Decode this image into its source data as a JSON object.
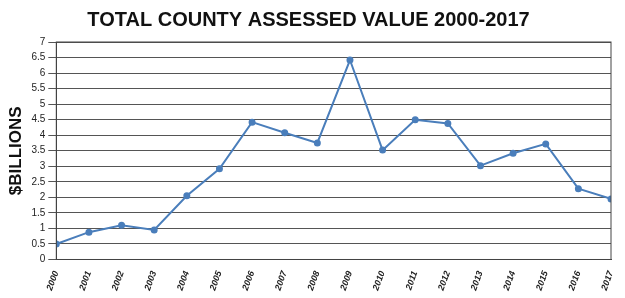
{
  "chart_data": {
    "type": "line",
    "title": "TOTAL COUNTY ASSESSED VALUE 2000-2017",
    "y_label": "$BILLIONS",
    "categories": [
      "2000",
      "2001",
      "2002",
      "2003",
      "2004",
      "2005",
      "2006",
      "2007",
      "2008",
      "2009",
      "2010",
      "2011",
      "2012",
      "2013",
      "2014",
      "2015",
      "2016",
      "2017"
    ],
    "values": [
      0.5,
      0.88,
      1.1,
      0.95,
      2.05,
      2.92,
      4.42,
      4.08,
      3.75,
      6.42,
      3.52,
      4.5,
      4.38,
      3.02,
      3.42,
      3.72,
      2.28,
      1.95
    ],
    "color": "#4a7ebb",
    "marker": "circle",
    "line_style": "solid",
    "ylim": [
      0,
      7
    ],
    "yticks": [
      0,
      0.5,
      1,
      1.5,
      2,
      2.5,
      3,
      3.5,
      4,
      4.5,
      5,
      5.5,
      6,
      6.5,
      7
    ],
    "grid": true
  }
}
